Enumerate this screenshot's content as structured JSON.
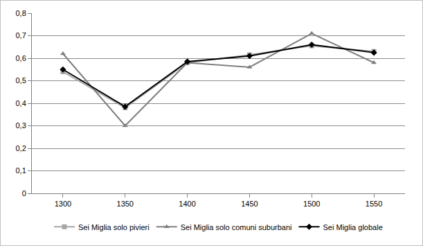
{
  "chart_data": {
    "type": "line",
    "categories": [
      "1300",
      "1350",
      "1400",
      "1450",
      "1500",
      "1550"
    ],
    "series": [
      {
        "name": "Sei Miglia solo pivieri",
        "color": "#a6a6a6",
        "marker": "square",
        "line_style": "solid",
        "values": [
          0.54,
          0.38,
          0.58,
          0.615,
          0.655,
          0.63
        ]
      },
      {
        "name": "Sei Miglia solo comuni suburbani",
        "color": "#7f7f7f",
        "marker": "triangle-up",
        "line_style": "solid",
        "values": [
          0.62,
          0.3,
          0.58,
          0.56,
          0.71,
          0.58
        ]
      },
      {
        "name": "Sei Miglia globale",
        "color": "#000000",
        "marker": "diamond",
        "line_style": "solid",
        "values": [
          0.55,
          0.385,
          0.585,
          0.61,
          0.66,
          0.625
        ]
      }
    ],
    "ylim": [
      0,
      0.8
    ],
    "yticks": [
      0,
      {
        "value": 0.1,
        "label": "0,1"
      },
      {
        "value": 0.2,
        "label": "0,2"
      },
      {
        "value": 0.3,
        "label": "0,3"
      },
      {
        "value": 0.4,
        "label": "0,4"
      },
      {
        "value": 0.5,
        "label": "0,5"
      },
      {
        "value": 0.6,
        "label": "0,6"
      },
      {
        "value": 0.7,
        "label": "0,7"
      },
      {
        "value": 0.8,
        "label": "0,8"
      }
    ],
    "grid": true,
    "legend": "bottom"
  }
}
